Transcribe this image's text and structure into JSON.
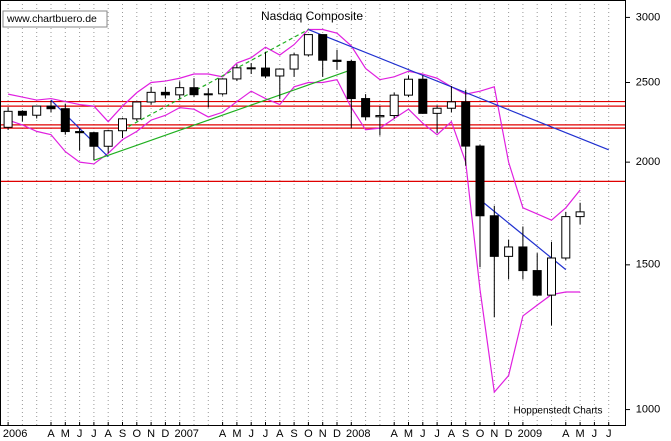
{
  "chart_data": {
    "type": "candlestick",
    "title": "Nasdaq Composite",
    "source": "www.chartbuero.de",
    "credit": "Hoppenstedt Charts",
    "log_scale": true,
    "ylim": [
      955,
      3150
    ],
    "yticks": [
      1000,
      1500,
      2000,
      2500,
      3000
    ],
    "x": [
      "2006-01",
      "2006-02",
      "2006-03",
      "2006-04",
      "2006-05",
      "2006-06",
      "2006-07",
      "2006-08",
      "2006-09",
      "2006-10",
      "2006-11",
      "2006-12",
      "2007-01",
      "2007-02",
      "2007-03",
      "2007-04",
      "2007-05",
      "2007-06",
      "2007-07",
      "2007-08",
      "2007-09",
      "2007-10",
      "2007-11",
      "2007-12",
      "2008-01",
      "2008-02",
      "2008-03",
      "2008-04",
      "2008-05",
      "2008-06",
      "2008-07",
      "2008-08",
      "2008-09",
      "2008-10",
      "2008-11",
      "2008-12",
      "2009-01",
      "2009-02",
      "2009-03",
      "2009-04",
      "2009-05",
      "2009-06",
      "2009-07"
    ],
    "xticks": [
      {
        "value": "2006-01",
        "label": "2006"
      },
      {
        "value": "2006-04",
        "label": "A"
      },
      {
        "value": "2006-05",
        "label": "M"
      },
      {
        "value": "2006-06",
        "label": "J"
      },
      {
        "value": "2006-07",
        "label": "J"
      },
      {
        "value": "2006-08",
        "label": "A"
      },
      {
        "value": "2006-09",
        "label": "S"
      },
      {
        "value": "2006-10",
        "label": "O"
      },
      {
        "value": "2006-11",
        "label": "N"
      },
      {
        "value": "2006-12",
        "label": "D"
      },
      {
        "value": "2007-01",
        "label": "2007"
      },
      {
        "value": "2007-04",
        "label": "A"
      },
      {
        "value": "2007-05",
        "label": "M"
      },
      {
        "value": "2007-06",
        "label": "J"
      },
      {
        "value": "2007-07",
        "label": "J"
      },
      {
        "value": "2007-08",
        "label": "A"
      },
      {
        "value": "2007-09",
        "label": "S"
      },
      {
        "value": "2007-10",
        "label": "O"
      },
      {
        "value": "2007-11",
        "label": "N"
      },
      {
        "value": "2007-12",
        "label": "D"
      },
      {
        "value": "2008-01",
        "label": "2008"
      },
      {
        "value": "2008-04",
        "label": "A"
      },
      {
        "value": "2008-05",
        "label": "M"
      },
      {
        "value": "2008-06",
        "label": "J"
      },
      {
        "value": "2008-07",
        "label": "J"
      },
      {
        "value": "2008-08",
        "label": "A"
      },
      {
        "value": "2008-09",
        "label": "S"
      },
      {
        "value": "2008-10",
        "label": "O"
      },
      {
        "value": "2008-11",
        "label": "N"
      },
      {
        "value": "2008-12",
        "label": "D"
      },
      {
        "value": "2009-01",
        "label": "2009"
      },
      {
        "value": "2009-04",
        "label": "A"
      },
      {
        "value": "2009-05",
        "label": "M"
      },
      {
        "value": "2009-06",
        "label": "J"
      },
      {
        "value": "2009-07",
        "label": "J"
      }
    ],
    "open": [
      2205,
      2306,
      2281,
      2340,
      2323,
      2179,
      2172,
      2091,
      2184,
      2258,
      2367,
      2432,
      2415,
      2464,
      2416,
      2422,
      2525,
      2605,
      2603,
      2546,
      2596,
      2701,
      2859,
      2661,
      2652,
      2390,
      2271,
      2279,
      2413,
      2523,
      2293,
      2326,
      2368,
      2092,
      1721,
      1536,
      1577,
      1476,
      1378,
      1529,
      1717,
      null,
      null
    ],
    "high": [
      2333,
      2313,
      2340,
      2375,
      2356,
      2200,
      2178,
      2190,
      2265,
      2370,
      2470,
      2470,
      2508,
      2531,
      2460,
      2530,
      2630,
      2640,
      2725,
      2600,
      2715,
      2861,
      2860,
      2740,
      2665,
      2420,
      2340,
      2430,
      2550,
      2550,
      2345,
      2475,
      2450,
      2100,
      1770,
      1610,
      1670,
      1550,
      1600,
      1740,
      1785,
      null,
      null
    ],
    "low": [
      2189,
      2240,
      2260,
      2300,
      2160,
      2065,
      2012,
      2050,
      2140,
      2245,
      2350,
      2390,
      2390,
      2400,
      2331,
      2410,
      2510,
      2560,
      2530,
      2386,
      2540,
      2690,
      2540,
      2590,
      2202,
      2250,
      2155,
      2260,
      2400,
      2290,
      2170,
      2300,
      1980,
      1490,
      1295,
      1440,
      1440,
      1375,
      1265,
      1520,
      1680,
      null,
      null
    ],
    "close": [
      2306,
      2281,
      2340,
      2323,
      2179,
      2172,
      2091,
      2184,
      2258,
      2367,
      2432,
      2415,
      2464,
      2416,
      2422,
      2525,
      2605,
      2603,
      2546,
      2596,
      2701,
      2859,
      2661,
      2652,
      2390,
      2271,
      2279,
      2413,
      2523,
      2293,
      2326,
      2368,
      2092,
      1721,
      1536,
      1577,
      1476,
      1378,
      1529,
      1717,
      1740,
      null,
      null
    ],
    "up_color": "#ffffff",
    "down_color": "#000000",
    "bands": [
      {
        "color": "#e020e0",
        "values": [
          2420,
          2400,
          2380,
          2390,
          2370,
          2350,
          2340,
          2240,
          2340,
          2430,
          2500,
          2510,
          2530,
          2560,
          2560,
          2540,
          2640,
          2680,
          2760,
          2700,
          2780,
          2900,
          2900,
          2870,
          2770,
          2600,
          2520,
          2540,
          2580,
          2560,
          2530,
          2470,
          2420,
          2440,
          2470,
          2000,
          1760,
          1730,
          1700,
          1760,
          1850,
          null,
          null
        ]
      },
      {
        "color": "#e020e0",
        "values": [
          2250,
          2220,
          2180,
          2160,
          2060,
          2000,
          1990,
          2050,
          2130,
          2180,
          2250,
          2280,
          2330,
          2320,
          2270,
          2300,
          2370,
          2440,
          2390,
          2350,
          2470,
          2500,
          2500,
          2520,
          2330,
          2190,
          2200,
          2260,
          2320,
          2230,
          2160,
          2240,
          2000,
          1400,
          1050,
          1100,
          1300,
          1340,
          1380,
          1390,
          1390,
          null,
          null
        ]
      }
    ],
    "hlines": [
      2370,
      2340,
      2220,
      2200,
      1895
    ],
    "hline_color": "#e00000",
    "trendlines": [
      {
        "color": "#2030d0",
        "dashed": false,
        "points": [
          [
            "2007-10",
            2900
          ],
          [
            "2009-07",
            2070
          ]
        ]
      },
      {
        "color": "#2030d0",
        "dashed": false,
        "points": [
          [
            "2006-04",
            2380
          ],
          [
            "2006-08",
            2030
          ]
        ]
      },
      {
        "color": "#2030d0",
        "dashed": false,
        "points": [
          [
            "2008-10",
            1800
          ],
          [
            "2009-04",
            1480
          ]
        ]
      },
      {
        "color": "#20b020",
        "dashed": false,
        "points": [
          [
            "2006-07",
            2010
          ],
          [
            "2008-01",
            2590
          ]
        ]
      },
      {
        "color": "#20b020",
        "dashed": true,
        "points": [
          [
            "2006-09",
            2190
          ],
          [
            "2007-10",
            2900
          ]
        ]
      }
    ],
    "grid": true
  }
}
